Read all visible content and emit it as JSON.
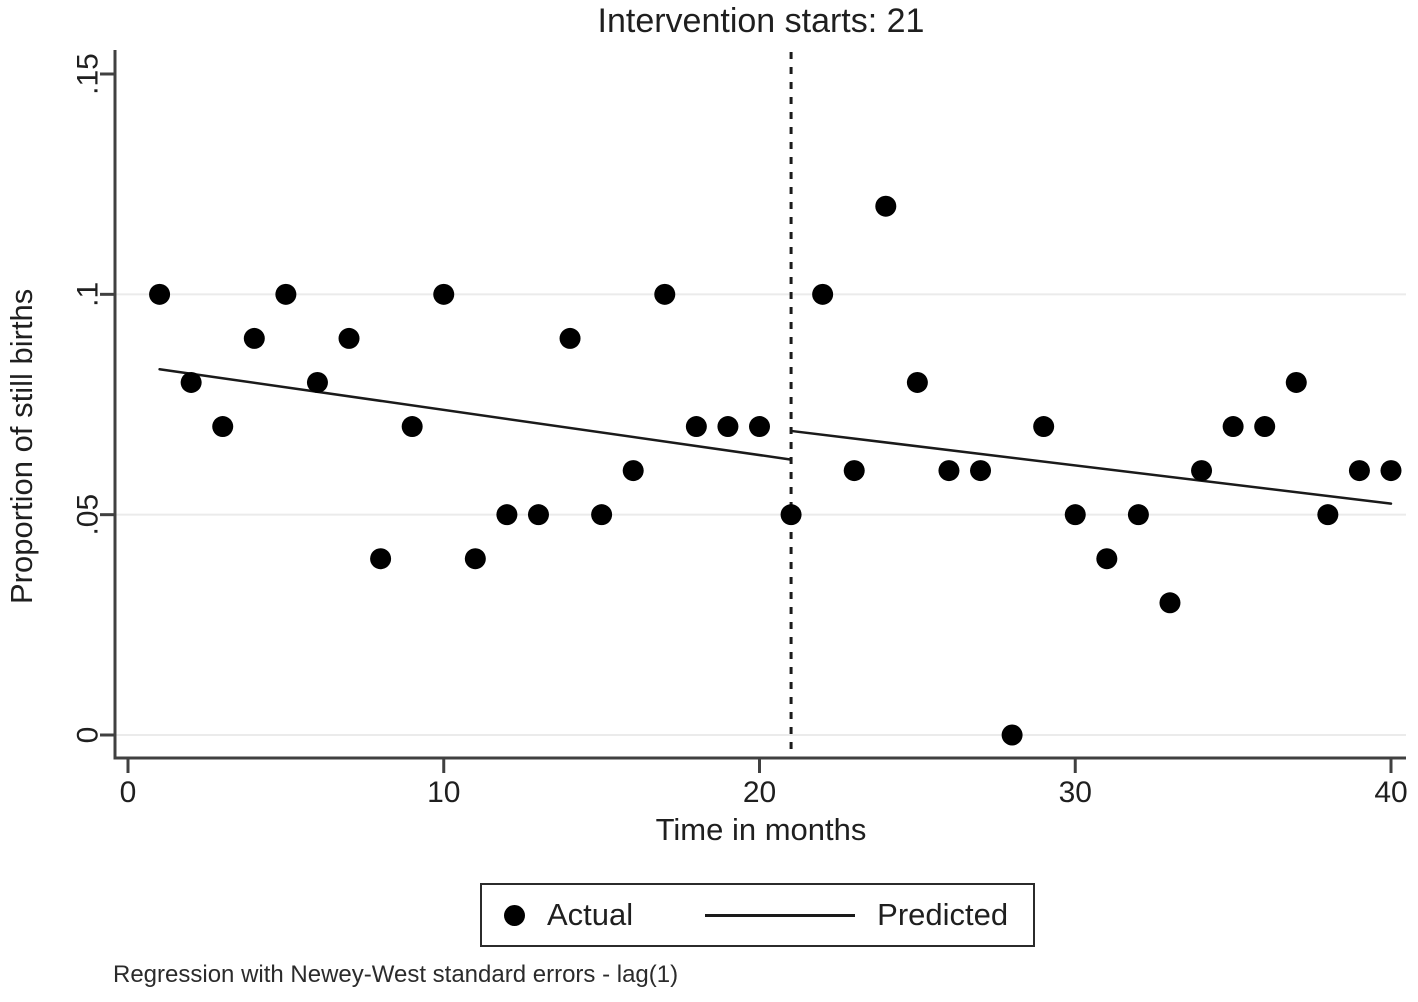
{
  "title": "Intervention starts: 21",
  "footer_note": "Regression with Newey-West standard errors - lag(1)",
  "legend": {
    "actual_label": "Actual",
    "predicted_label": "Predicted"
  },
  "colors": {
    "point": "#000000",
    "predicted_line": "#1a1a1a",
    "intervention_line": "#1a1a1a",
    "axis": "#404040",
    "grid": "#ebebeb",
    "text": "#1f1f1f",
    "background": "#ffffff"
  },
  "chart_data": {
    "type": "scatter",
    "title": "Intervention starts: 21",
    "xlabel": "Time in months",
    "ylabel": "Proportion of still births",
    "xlim": [
      0,
      40
    ],
    "ylim": [
      0,
      0.15
    ],
    "x_ticks": [
      0,
      10,
      20,
      30,
      40
    ],
    "x_tick_labels": [
      "0",
      "10",
      "20",
      "30",
      "40"
    ],
    "y_ticks": [
      0,
      0.05,
      0.1,
      0.15
    ],
    "y_tick_labels": [
      "0",
      ".05",
      ".1",
      ".15"
    ],
    "gridlines_y": [
      0,
      0.05,
      0.1
    ],
    "grid": true,
    "legend_position": "bottom",
    "intervention_x": 21,
    "series": [
      {
        "name": "Actual",
        "type": "scatter",
        "x": [
          1,
          2,
          3,
          4,
          5,
          6,
          7,
          8,
          9,
          10,
          11,
          12,
          13,
          14,
          15,
          16,
          17,
          18,
          19,
          20,
          21,
          22,
          23,
          24,
          25,
          26,
          27,
          28,
          29,
          30,
          31,
          32,
          33,
          34,
          35,
          36,
          37,
          38,
          39,
          40
        ],
        "y": [
          0.1,
          0.08,
          0.07,
          0.09,
          0.1,
          0.08,
          0.09,
          0.04,
          0.07,
          0.1,
          0.04,
          0.05,
          0.05,
          0.09,
          0.05,
          0.06,
          0.1,
          0.07,
          0.07,
          0.07,
          0.05,
          0.1,
          0.06,
          0.12,
          0.08,
          0.06,
          0.06,
          0.0,
          0.07,
          0.05,
          0.04,
          0.05,
          0.03,
          0.06,
          0.07,
          0.07,
          0.08,
          0.05,
          0.06,
          0.06
        ]
      },
      {
        "name": "Predicted",
        "type": "line",
        "segments": [
          {
            "x": [
              1,
              21
            ],
            "y": [
              0.083,
              0.0625
            ]
          },
          {
            "x": [
              21,
              40
            ],
            "y": [
              0.069,
              0.0525
            ]
          }
        ]
      }
    ]
  }
}
